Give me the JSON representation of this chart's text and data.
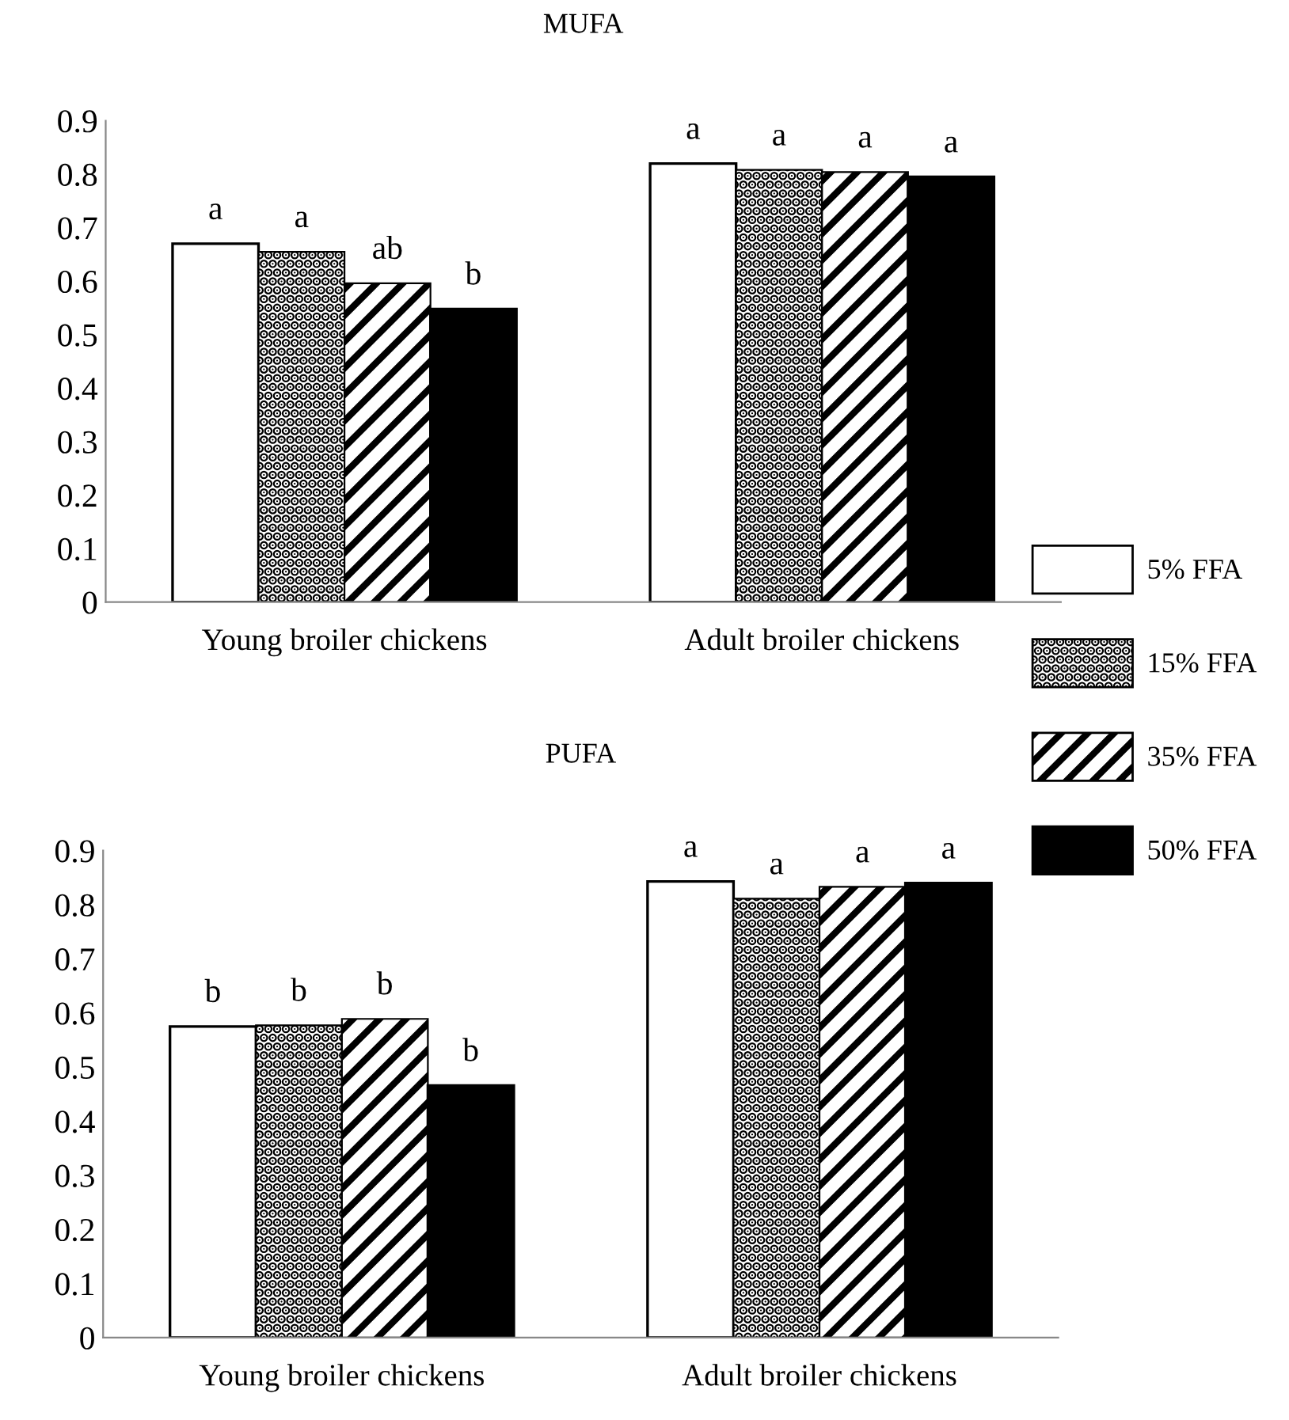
{
  "chart_data": [
    {
      "type": "bar",
      "title": "MUFA",
      "categories": [
        "Young broiler chickens",
        "Adult broiler chickens"
      ],
      "series": [
        {
          "name": "5% FFA",
          "color": "#ffffff",
          "values": [
            0.67,
            0.82
          ]
        },
        {
          "name": "15% FFA",
          "color": "#000000",
          "values": [
            0.655,
            0.808
          ]
        },
        {
          "name": "35% FFA",
          "color": "#000000",
          "values": [
            0.596,
            0.804
          ]
        },
        {
          "name": "50% FFA",
          "color": "#000000",
          "values": [
            0.548,
            0.795
          ]
        }
      ],
      "annotations": [
        "a",
        "a",
        "ab",
        "b",
        "a",
        "a",
        "a",
        "a"
      ],
      "ylim": [
        0,
        0.9
      ],
      "yticks": [
        0,
        0.1,
        0.2,
        0.3,
        0.4,
        0.5,
        0.6,
        0.7,
        0.8,
        0.9
      ],
      "grid": false,
      "legend": "right"
    },
    {
      "type": "bar",
      "title": "PUFA",
      "categories": [
        "Young broiler chickens",
        "Adult broiler chickens"
      ],
      "series": [
        {
          "color": "#ffffff",
          "values": [
            0.575,
            0.843
          ]
        },
        {
          "color": "#000000",
          "values": [
            0.577,
            0.811
          ]
        },
        {
          "color": "#000000",
          "values": [
            0.589,
            0.833
          ]
        },
        {
          "color": "#000000",
          "values": [
            0.466,
            0.84
          ]
        }
      ],
      "annotations": [
        "b",
        "b",
        "b",
        "b",
        "a",
        "a",
        "a",
        "a"
      ],
      "ylim": [
        0,
        0.9
      ],
      "yticks": [
        0,
        0.1,
        0.2,
        0.3,
        0.4,
        0.5,
        0.6,
        0.7,
        0.8,
        0.9
      ],
      "grid": false,
      "legend": false
    }
  ]
}
